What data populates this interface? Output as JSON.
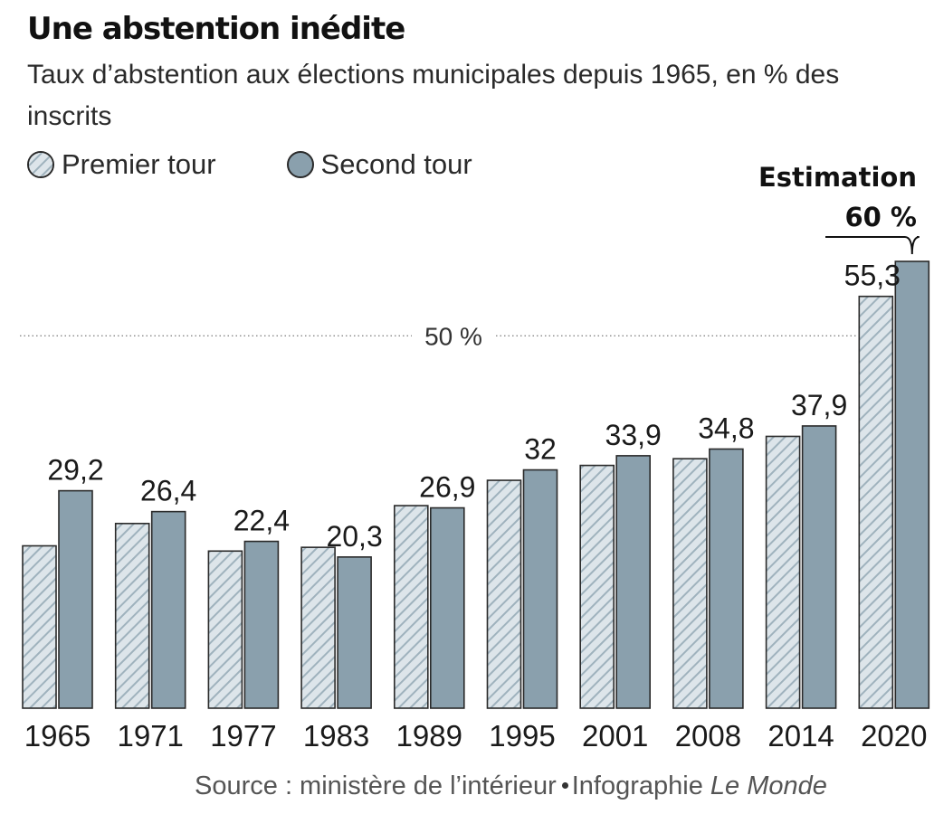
{
  "header": {
    "title": "Une abstention inédite",
    "subtitle": "Taux d’abstention aux élections municipales depuis 1965, en % des inscrits"
  },
  "legend": {
    "first_round": "Premier tour",
    "second_round": "Second tour"
  },
  "source": {
    "prefix": "Source : ministère de l’intérieur",
    "credit": "Infographie",
    "brand": "Le Monde"
  },
  "colors": {
    "bar_fill": "#8aa0ad",
    "hatch_light": "#dde5ea",
    "hatch_dark": "#9fb2bd",
    "outline": "#2a2a2a",
    "reference_line": "#888888"
  },
  "chart_data": {
    "type": "bar",
    "title": "Une abstention inédite",
    "subtitle": "Taux d’abstention aux élections municipales depuis 1965, en % des inscrits",
    "xlabel": "",
    "ylabel": "",
    "categories": [
      "1965",
      "1971",
      "1977",
      "1983",
      "1989",
      "1995",
      "2001",
      "2008",
      "2014",
      "2020"
    ],
    "series": [
      {
        "name": "Premier tour",
        "pattern": "hatched",
        "values": [
          21.8,
          24.8,
          21.1,
          21.6,
          27.2,
          30.6,
          32.6,
          33.5,
          36.5,
          55.3
        ]
      },
      {
        "name": "Second tour",
        "pattern": "solid",
        "values": [
          29.2,
          26.4,
          22.4,
          20.3,
          26.9,
          32,
          33.9,
          34.8,
          37.9,
          60
        ]
      }
    ],
    "value_labels": [
      {
        "category": "1965",
        "series": "Second tour",
        "text": "29,2"
      },
      {
        "category": "1971",
        "series": "Second tour",
        "text": "26,4"
      },
      {
        "category": "1977",
        "series": "Second tour",
        "text": "22,4"
      },
      {
        "category": "1983",
        "series": "Second tour",
        "text": "20,3"
      },
      {
        "category": "1989",
        "series": "Second tour",
        "text": "26,9"
      },
      {
        "category": "1995",
        "series": "Second tour",
        "text": "32"
      },
      {
        "category": "2001",
        "series": "Second tour",
        "text": "33,9"
      },
      {
        "category": "2008",
        "series": "Second tour",
        "text": "34,8"
      },
      {
        "category": "2014",
        "series": "Second tour",
        "text": "37,9"
      },
      {
        "category": "2020",
        "series": "Premier tour",
        "text": "55,3"
      }
    ],
    "reference_line": {
      "value": 50,
      "label": "50 %"
    },
    "annotation": {
      "category": "2020",
      "series": "Second tour",
      "label": "Estimation",
      "value_text": "60 %"
    },
    "ylim": [
      0,
      60
    ],
    "grid": false,
    "legend_position": "top-left"
  }
}
